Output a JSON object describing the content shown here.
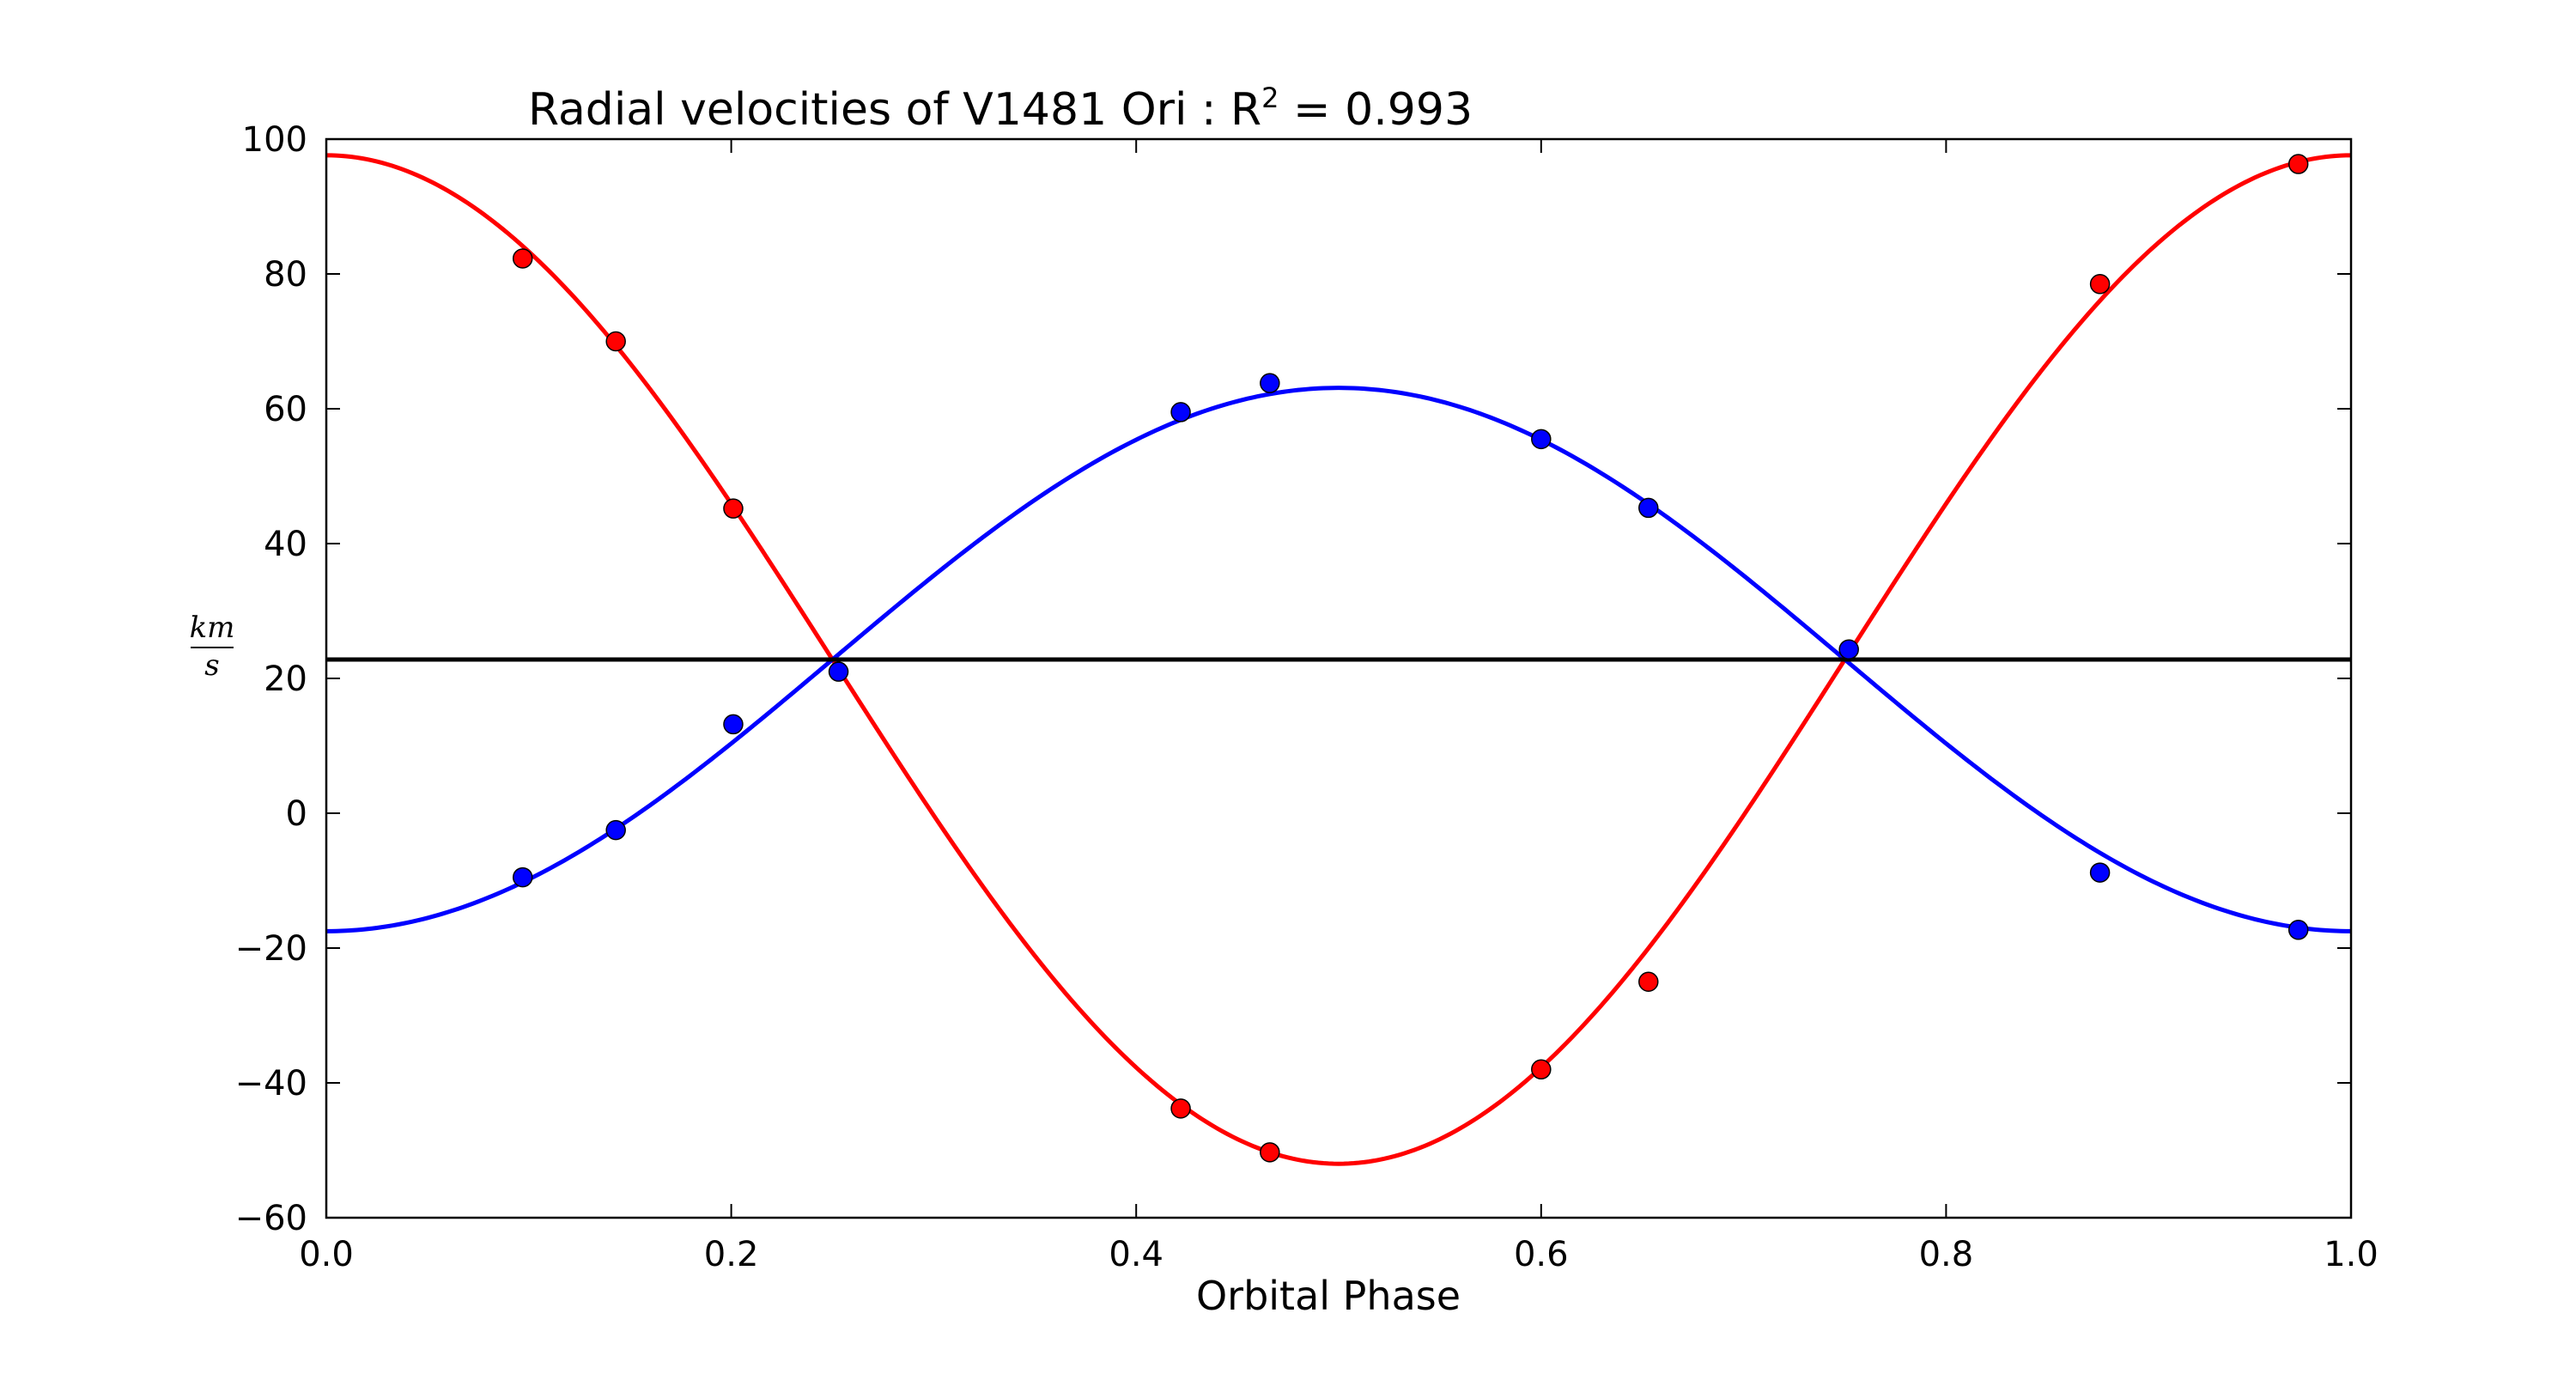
{
  "chart_data": {
    "type": "scatter",
    "title": {
      "prefix": "Radial velocities of V1481 Ori : R",
      "sup": "2",
      "suffix": " = 0.993"
    },
    "xlabel": "Orbital Phase",
    "ylabel": {
      "numerator": "km",
      "denominator": "s"
    },
    "xlim": [
      0.0,
      1.0
    ],
    "ylim": [
      -60,
      100
    ],
    "xticks": [
      0.0,
      0.2,
      0.4,
      0.6,
      0.8,
      1.0
    ],
    "xtick_labels": [
      "0.0",
      "0.2",
      "0.4",
      "0.6",
      "0.8",
      "1.0"
    ],
    "yticks": [
      -60,
      -40,
      -20,
      0,
      20,
      40,
      60,
      80,
      100
    ],
    "ytick_labels": [
      "−60",
      "−40",
      "−20",
      "0",
      "20",
      "40",
      "60",
      "80",
      "100"
    ],
    "systemic_velocity": 22.8,
    "grid": false,
    "series": [
      {
        "color": "#ff0000",
        "fit": {
          "gamma": 22.8,
          "K": 74.8,
          "phase_of_max": 0.0
        },
        "points": [
          {
            "x": 0.097,
            "y": 82.3
          },
          {
            "x": 0.143,
            "y": 70.0
          },
          {
            "x": 0.201,
            "y": 45.2
          },
          {
            "x": 0.422,
            "y": -43.8
          },
          {
            "x": 0.466,
            "y": -50.3
          },
          {
            "x": 0.6,
            "y": -38.0
          },
          {
            "x": 0.653,
            "y": -25.0
          },
          {
            "x": 0.876,
            "y": 78.5
          },
          {
            "x": 0.974,
            "y": 96.3
          }
        ]
      },
      {
        "color": "#0000ff",
        "fit": {
          "gamma": 22.8,
          "K": 40.3,
          "phase_of_max": 0.5
        },
        "points": [
          {
            "x": 0.097,
            "y": -9.5
          },
          {
            "x": 0.143,
            "y": -2.5
          },
          {
            "x": 0.201,
            "y": 13.2
          },
          {
            "x": 0.253,
            "y": 21.0
          },
          {
            "x": 0.422,
            "y": 59.5
          },
          {
            "x": 0.466,
            "y": 63.8
          },
          {
            "x": 0.6,
            "y": 55.5
          },
          {
            "x": 0.653,
            "y": 45.3
          },
          {
            "x": 0.752,
            "y": 24.3
          },
          {
            "x": 0.876,
            "y": -8.8
          },
          {
            "x": 0.974,
            "y": -17.3
          }
        ]
      }
    ]
  }
}
